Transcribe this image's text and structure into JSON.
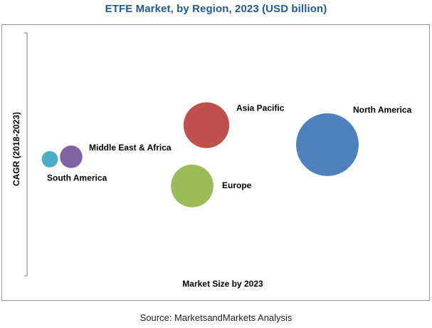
{
  "chart_data": {
    "type": "bubble",
    "title": "ETFE Market, by Region, 2023 (USD billion)",
    "xlabel": "Market Size by 2023",
    "ylabel": "CAGR (2018-2023)",
    "source": "Source: MarketsandMarkets Analysis",
    "axis_ticks": "none",
    "grid": false,
    "legend": "none",
    "series": [
      {
        "name": "North America",
        "x": 0.86,
        "y": 0.54,
        "size": 1.0,
        "color": "#4f81bd"
      },
      {
        "name": "Asia Pacific",
        "x": 0.52,
        "y": 0.62,
        "size": 0.73,
        "color": "#c0504d"
      },
      {
        "name": "Europe",
        "x": 0.48,
        "y": 0.37,
        "size": 0.68,
        "color": "#9bbb59"
      },
      {
        "name": "Middle East & Africa",
        "x": 0.14,
        "y": 0.49,
        "size": 0.36,
        "color": "#8064a2"
      },
      {
        "name": "South America",
        "x": 0.08,
        "y": 0.48,
        "size": 0.26,
        "color": "#4bacc6"
      }
    ]
  }
}
